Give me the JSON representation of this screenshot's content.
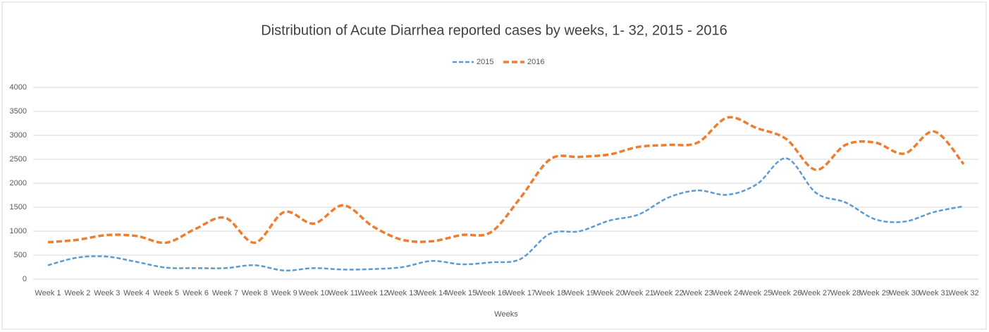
{
  "chart_data": {
    "type": "line",
    "title": "Distribution of Acute Diarrhea reported cases by weeks, 1- 32, 2015 - 2016",
    "x_label": "Weeks",
    "categories": [
      "Week 1",
      "Week 2",
      "Week 3",
      "Week 4",
      "Week 5",
      "Week 6",
      "Week 7",
      "Week 8",
      "Week 9",
      "Week 10",
      "Week 11",
      "Week 12",
      "Week 13",
      "Week 14",
      "Week 15",
      "Week 16",
      "Week 17",
      "Week 18",
      "Week 19",
      "Week 20",
      "Week 21",
      "Week 22",
      "Week 23",
      "Week 24",
      "Week 25",
      "Week 26",
      "Week 27",
      "Week 28",
      "Week 29",
      "Week 30",
      "Week 31",
      "Week 32"
    ],
    "series": [
      {
        "name": "2015",
        "color": "#5b9bd5",
        "values": [
          290,
          450,
          470,
          360,
          240,
          230,
          230,
          290,
          180,
          230,
          200,
          210,
          250,
          380,
          310,
          350,
          420,
          950,
          1000,
          1220,
          1350,
          1700,
          1850,
          1760,
          1980,
          2520,
          1800,
          1600,
          1250,
          1200,
          1400,
          1520
        ]
      },
      {
        "name": "2016",
        "color": "#ed7d31",
        "values": [
          770,
          820,
          920,
          900,
          760,
          1050,
          1280,
          760,
          1400,
          1160,
          1540,
          1100,
          820,
          790,
          920,
          980,
          1700,
          2500,
          2550,
          2600,
          2760,
          2800,
          2850,
          3370,
          3150,
          2920,
          2280,
          2800,
          2850,
          2620,
          3080,
          2400
        ]
      }
    ],
    "ylim": [
      0,
      4000
    ],
    "yticks": [
      0,
      500,
      1000,
      1500,
      2000,
      2500,
      3000,
      3500,
      4000
    ],
    "grid": true,
    "legend": "top"
  }
}
